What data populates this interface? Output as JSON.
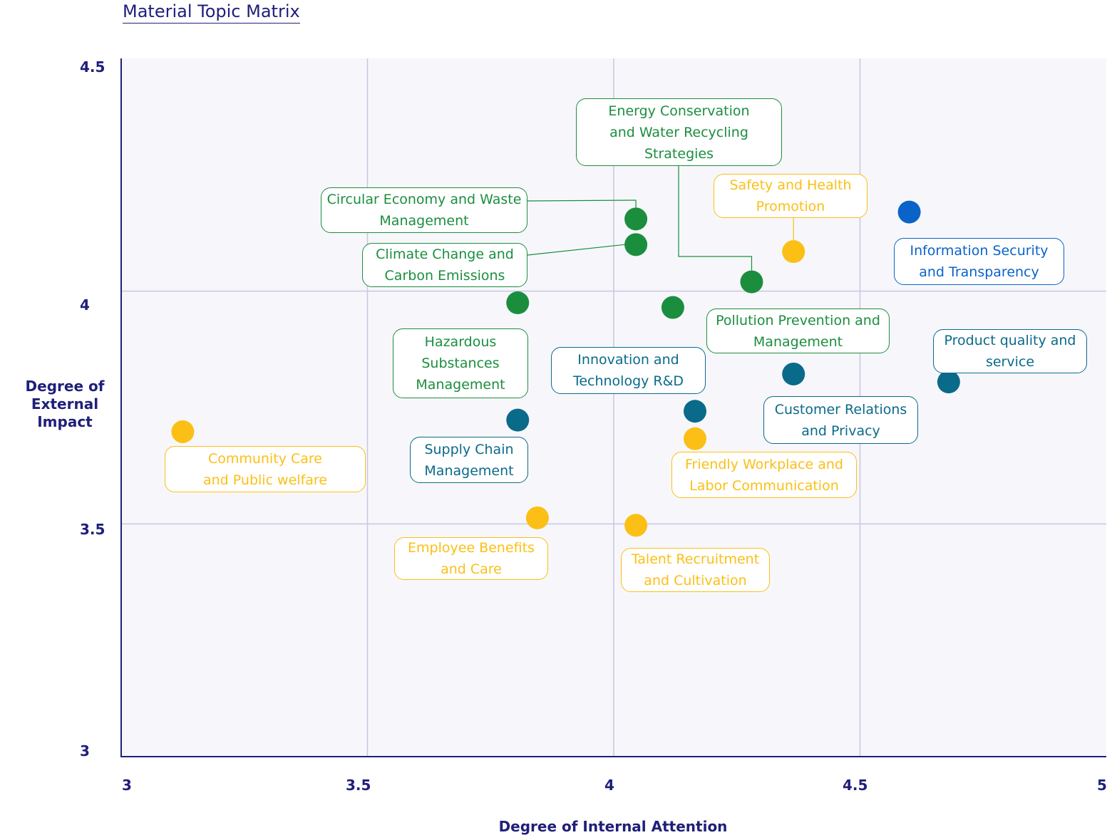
{
  "chart_data": {
    "type": "scatter",
    "title": "Material Topic Matrix",
    "xlabel": "Degree of Internal Attention",
    "ylabel": "Degree of External Impact",
    "xlim": [
      3,
      5
    ],
    "ylim": [
      3,
      4.5
    ],
    "x_ticks": [
      "3",
      "3.5",
      "4",
      "4.5",
      "5"
    ],
    "y_ticks": [
      "4.5",
      "4",
      "3.5",
      "3"
    ],
    "grid": true,
    "colors": {
      "environment": "#1b8e3e",
      "social": "#fbbf16",
      "governance": "#0a6a8a",
      "information": "#0a63c9",
      "axis": "#1f1f7a",
      "grid": "#c8c6e2"
    },
    "points": [
      {
        "label": "Energy Conservation and Water Recycling Strategies",
        "x": 4.28,
        "y": 4.02,
        "category": "environment"
      },
      {
        "label": "Circular Economy and Waste Management",
        "x": 4.045,
        "y": 4.155,
        "category": "environment"
      },
      {
        "label": "Climate Change and Carbon Emissions",
        "x": 4.045,
        "y": 4.1,
        "category": "environment"
      },
      {
        "label": "Hazardous Substances Management",
        "x": 3.805,
        "y": 3.975,
        "category": "environment"
      },
      {
        "label": "Pollution Prevention and Management",
        "x": 4.12,
        "y": 3.965,
        "category": "environment"
      },
      {
        "label": "Safety and Health Promotion",
        "x": 4.365,
        "y": 4.085,
        "category": "social"
      },
      {
        "label": "Information Security and Transparency",
        "x": 4.6,
        "y": 4.17,
        "category": "information"
      },
      {
        "label": "Product quality and service",
        "x": 4.68,
        "y": 3.805,
        "category": "governance"
      },
      {
        "label": "Customer Relations and Privacy",
        "x": 4.365,
        "y": 3.822,
        "category": "governance"
      },
      {
        "label": "Innovation and Technology  R&D",
        "x": 4.165,
        "y": 3.742,
        "category": "governance"
      },
      {
        "label": "Supply Chain Management",
        "x": 3.805,
        "y": 3.723,
        "category": "governance"
      },
      {
        "label": "Friendly Workplace and Labor Communication",
        "x": 4.165,
        "y": 3.683,
        "category": "social"
      },
      {
        "label": "Community Care and Public welfare",
        "x": 3.125,
        "y": 3.698,
        "category": "social"
      },
      {
        "label": "Employee Benefits and Care",
        "x": 3.845,
        "y": 3.513,
        "category": "social"
      },
      {
        "label": "Talent Recruitment and Cultivation",
        "x": 4.045,
        "y": 3.497,
        "category": "social"
      }
    ]
  },
  "labels": {
    "energy": [
      "Energy Conservation",
      "and Water Recycling",
      "Strategies"
    ],
    "circular": [
      "Circular Economy and Waste",
      "Management"
    ],
    "climate": [
      "Climate Change and",
      "Carbon Emissions"
    ],
    "hazardous": [
      "Hazardous",
      "Substances",
      "Management"
    ],
    "pollution": [
      "Pollution Prevention and",
      "Management"
    ],
    "safety": [
      "Safety and Health",
      "Promotion"
    ],
    "infosec": [
      "Information Security",
      "and Transparency"
    ],
    "product": [
      "Product quality and",
      "service"
    ],
    "customer": [
      "Customer Relations",
      "and Privacy"
    ],
    "innovation": [
      "Innovation and",
      "Technology  R&D"
    ],
    "supply": [
      "Supply Chain",
      "Management"
    ],
    "friendly": [
      "Friendly Workplace and",
      "Labor Communication"
    ],
    "community": [
      "Community Care",
      "and Public welfare"
    ],
    "employee": [
      "Employee Benefits",
      "and Care"
    ],
    "talent": [
      "Talent Recruitment",
      "and Cultivation"
    ]
  }
}
